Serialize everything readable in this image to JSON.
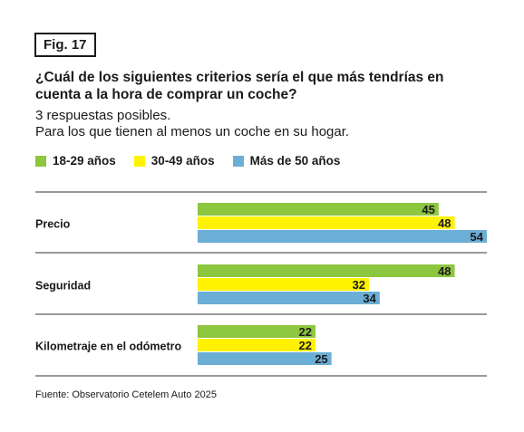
{
  "figure_label": "Fig. 17",
  "title": "¿Cuál de los siguientes criterios sería el que más tendrías en cuenta a la hora de comprar un coche?",
  "subtitle_1": "3 respuestas posibles.",
  "subtitle_2": "Para los que tienen al menos un coche en su hogar.",
  "source": "Fuente: Observatorio Cetelem Auto 2025",
  "chart_data": {
    "type": "bar",
    "orientation": "horizontal",
    "title": "¿Cuál de los siguientes criterios sería el que más tendrías en cuenta a la hora de comprar un coche?",
    "categories": [
      "Precio",
      "Seguridad",
      "Kilometraje en el odómetro"
    ],
    "series": [
      {
        "name": "18-29 años",
        "color": "#8dc63f",
        "values": [
          45,
          48,
          22
        ]
      },
      {
        "name": "30-49 años",
        "color": "#fff200",
        "values": [
          48,
          32,
          22
        ]
      },
      {
        "name": "Más de 50 años",
        "color": "#6baed6",
        "values": [
          54,
          34,
          25
        ]
      }
    ],
    "xlim": [
      0,
      54
    ],
    "grid": false,
    "legend": "top-left",
    "data_labels": true
  }
}
